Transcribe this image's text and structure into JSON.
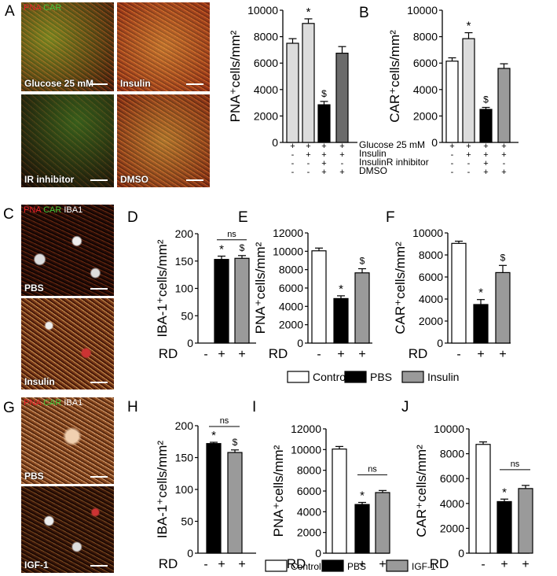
{
  "panels": {
    "A": {
      "letter": "A",
      "stain": {
        "pna": "PNA",
        "car": "CAR"
      },
      "images": [
        "Glucose 25 mM",
        "Insulin",
        "IR inhibitor",
        "DMSO"
      ]
    },
    "C": {
      "letter": "C",
      "stain": {
        "pna": "PNA",
        "car": "CAR",
        "iba": "IBA1"
      },
      "images": [
        "PBS",
        "Insulin"
      ]
    },
    "G": {
      "letter": "G",
      "stain": {
        "pna": "PNA",
        "car": "CAR",
        "iba": "IBA1"
      },
      "images": [
        "PBS",
        "IGF-1"
      ]
    }
  },
  "treatment_table": {
    "rows": [
      {
        "label": "Glucose 25 mM",
        "marks": [
          "+",
          "+",
          "+",
          "+"
        ]
      },
      {
        "label": "Insulin",
        "marks": [
          "-",
          "+",
          "+",
          "+"
        ]
      },
      {
        "label": "InsulinR inhibitor",
        "marks": [
          "-",
          "-",
          "+",
          "-"
        ]
      },
      {
        "label": "DMSO",
        "marks": [
          "-",
          "-",
          "+",
          "+"
        ]
      }
    ]
  },
  "legends": {
    "mid": [
      "Control",
      "PBS",
      "Insulin"
    ],
    "bottom": [
      "Control",
      "PBS",
      "IGF-1"
    ]
  },
  "colors": {
    "control": "#ffffff",
    "pbs": "#000000",
    "treatment": "#9a9a9a",
    "lightgray": "#dcdcdc",
    "midgray": "#9b9b9b",
    "darkgray": "#6b6b6b"
  },
  "chart_data": [
    {
      "id": "A",
      "letter": "",
      "type": "bar",
      "ylabel": "PNA⁺cells/mm²",
      "ylim": [
        0,
        10000
      ],
      "ticks": [
        0,
        2000,
        4000,
        6000,
        8000,
        10000
      ],
      "values": [
        7500,
        9000,
        2850,
        6750
      ],
      "errors": [
        350,
        350,
        250,
        500
      ],
      "annotations": [
        "",
        "*",
        "$",
        ""
      ]
    },
    {
      "id": "B",
      "letter": "B",
      "type": "bar",
      "ylabel": "CAR⁺cells/mm²",
      "ylim": [
        0,
        10000
      ],
      "ticks": [
        0,
        2000,
        4000,
        6000,
        8000,
        10000
      ],
      "values": [
        6150,
        7850,
        2500,
        5600
      ],
      "errors": [
        250,
        450,
        150,
        350
      ],
      "annotations": [
        "",
        "*",
        "$",
        ""
      ]
    },
    {
      "id": "D",
      "letter": "D",
      "type": "bar",
      "ylabel": "IBA-1⁺cells/mm²",
      "ylim": [
        0,
        200
      ],
      "ticks": [
        0,
        50,
        100,
        150,
        200
      ],
      "categories": [
        "-",
        "+",
        "+"
      ],
      "xlabel": "RD",
      "values": [
        0,
        153,
        155
      ],
      "errors": [
        0,
        6,
        5
      ],
      "annotations": [
        "",
        "*",
        "$"
      ],
      "bracket": "ns"
    },
    {
      "id": "E",
      "letter": "E",
      "type": "bar",
      "ylabel": "PNA⁺cells/mm²",
      "ylim": [
        0,
        12000
      ],
      "ticks": [
        0,
        2000,
        4000,
        6000,
        8000,
        10000,
        12000
      ],
      "categories": [
        "-",
        "+",
        "+"
      ],
      "xlabel": "RD",
      "values": [
        10050,
        4850,
        7650
      ],
      "errors": [
        300,
        300,
        450
      ],
      "annotations": [
        "",
        "*",
        "$"
      ]
    },
    {
      "id": "F",
      "letter": "F",
      "type": "bar",
      "ylabel": "CAR⁺cells/mm²",
      "ylim": [
        0,
        10000
      ],
      "ticks": [
        0,
        2000,
        4000,
        6000,
        8000,
        10000
      ],
      "categories": [
        "-",
        "+",
        "+"
      ],
      "xlabel": "RD",
      "values": [
        9050,
        3500,
        6400
      ],
      "errors": [
        200,
        450,
        650
      ],
      "annotations": [
        "",
        "*",
        "$"
      ]
    },
    {
      "id": "H",
      "letter": "H",
      "type": "bar",
      "ylabel": "IBA-1⁺cells/mm²",
      "ylim": [
        0,
        200
      ],
      "ticks": [
        0,
        50,
        100,
        150,
        200
      ],
      "categories": [
        "-",
        "+",
        "+"
      ],
      "xlabel": "RD",
      "values": [
        0,
        172,
        158
      ],
      "errors": [
        0,
        2,
        4
      ],
      "annotations": [
        "",
        "*",
        "$"
      ],
      "bracket": "ns"
    },
    {
      "id": "I",
      "letter": "I",
      "type": "bar",
      "ylabel": "PNA⁺cells/mm²",
      "ylim": [
        0,
        12000
      ],
      "ticks": [
        0,
        2000,
        4000,
        6000,
        8000,
        10000,
        12000
      ],
      "categories": [
        "-",
        "+",
        "+"
      ],
      "xlabel": "RD",
      "values": [
        10050,
        4700,
        5850
      ],
      "errors": [
        250,
        200,
        200
      ],
      "annotations": [
        "",
        "*",
        ""
      ],
      "bracket": "ns"
    },
    {
      "id": "J",
      "letter": "J",
      "type": "bar",
      "ylabel": "CAR⁺cells/mm²",
      "ylim": [
        0,
        10000
      ],
      "ticks": [
        0,
        2000,
        4000,
        6000,
        8000,
        10000
      ],
      "categories": [
        "-",
        "+",
        "+"
      ],
      "xlabel": "RD",
      "values": [
        8750,
        4150,
        5200
      ],
      "errors": [
        200,
        200,
        250
      ],
      "annotations": [
        "",
        "*",
        ""
      ],
      "bracket": "ns"
    }
  ]
}
